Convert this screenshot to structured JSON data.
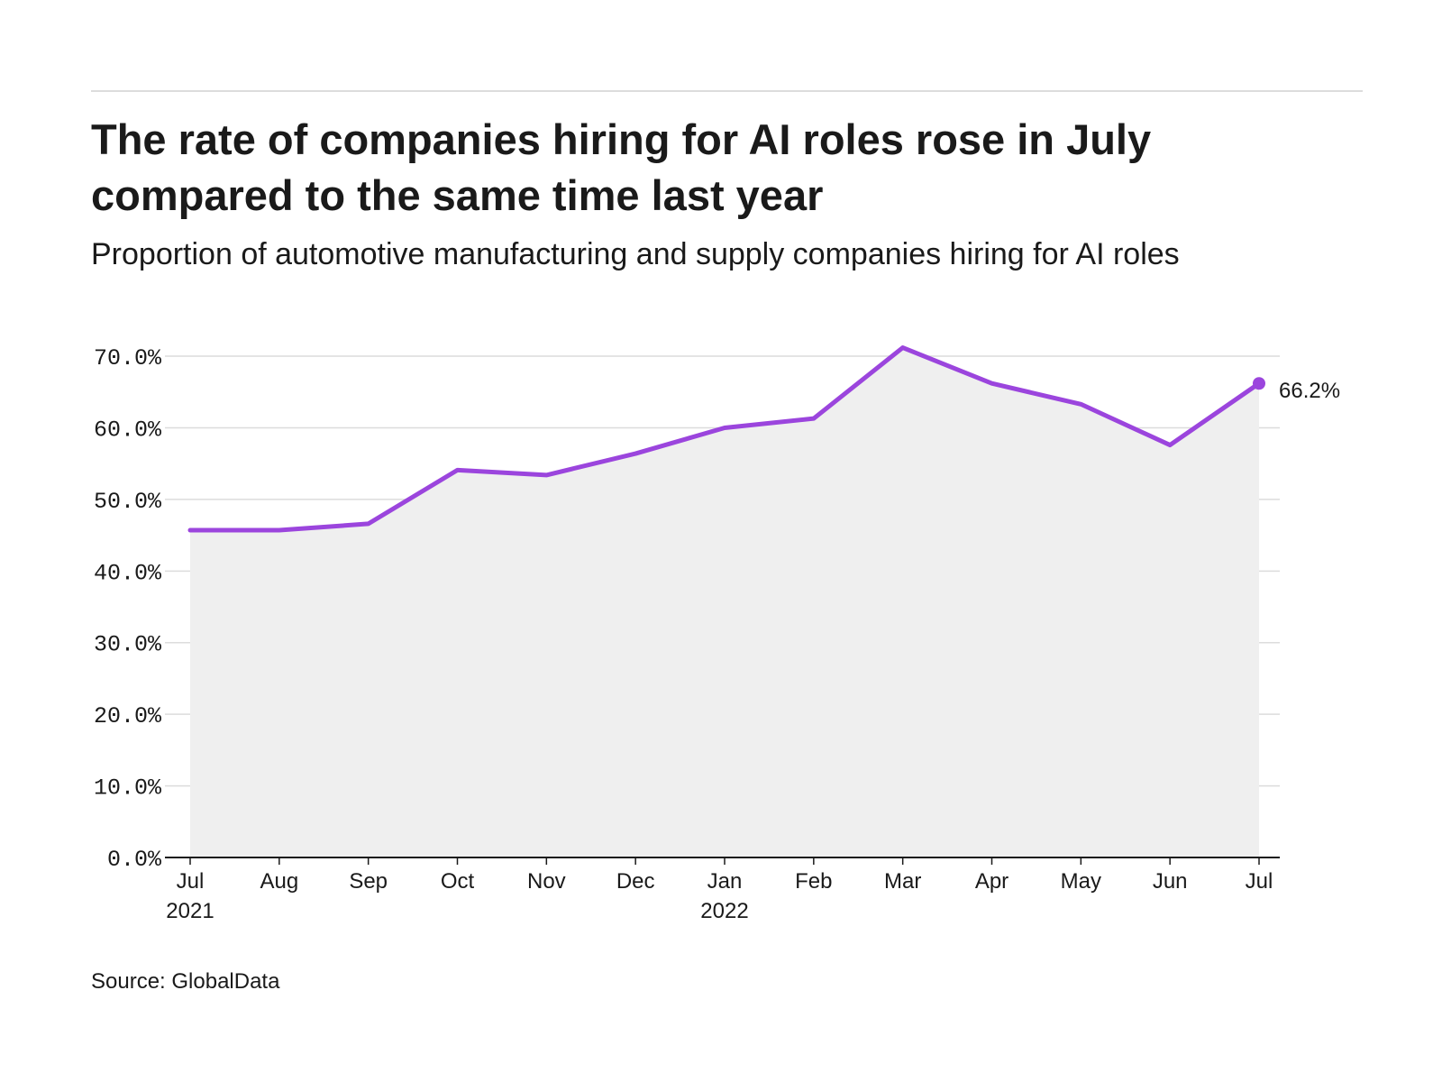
{
  "header": {
    "title": "The rate of companies hiring for AI roles rose in July compared to the same time last year",
    "subtitle": "Proportion of automotive manufacturing and supply companies hiring for AI roles"
  },
  "footer": {
    "source": "Source: GlobalData"
  },
  "colors": {
    "line": "#9b45dd",
    "area": "#efefef",
    "grid": "#dcdcdc",
    "axis": "#1a1a1a",
    "text": "#1a1a1a"
  },
  "chart_data": {
    "type": "area",
    "title": "The rate of companies hiring for AI roles rose in July compared to the same time last year",
    "subtitle": "Proportion of automotive manufacturing and supply companies hiring for AI roles",
    "categories": [
      "Jul",
      "Aug",
      "Sep",
      "Oct",
      "Nov",
      "Dec",
      "Jan",
      "Feb",
      "Mar",
      "Apr",
      "May",
      "Jun",
      "Jul"
    ],
    "x_sublabels": [
      "2021",
      "",
      "",
      "",
      "",
      "",
      "2022",
      "",
      "",
      "",
      "",
      "",
      ""
    ],
    "series": [
      {
        "values": [
          45.7,
          45.7,
          46.6,
          54.1,
          53.4,
          56.4,
          60.0,
          61.3,
          71.2,
          66.2,
          63.3,
          57.6,
          66.2
        ]
      }
    ],
    "y_ticks": [
      "0.0%",
      "10.0%",
      "20.0%",
      "30.0%",
      "40.0%",
      "50.0%",
      "60.0%",
      "70.0%"
    ],
    "ylim": [
      0,
      70
    ],
    "grid": true,
    "end_label": "66.2%",
    "xlabel": "",
    "ylabel": ""
  }
}
